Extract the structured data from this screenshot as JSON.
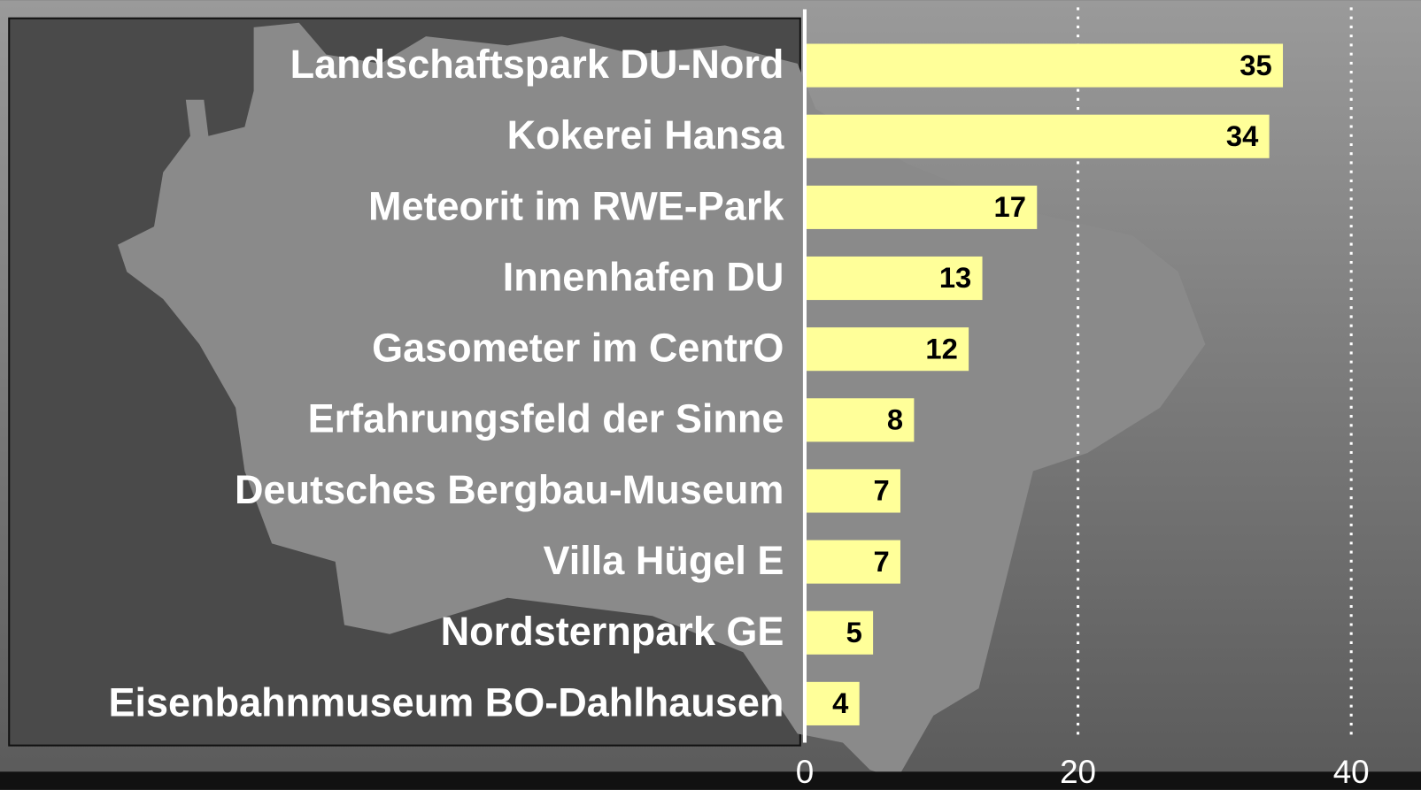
{
  "chart_data": {
    "type": "bar",
    "orientation": "horizontal",
    "categories": [
      "Landschaftspark DU-Nord",
      "Kokerei Hansa",
      "Meteorit im RWE-Park",
      "Innenhafen DU",
      "Gasometer im CentrO",
      "Erfahrungsfeld der Sinne",
      "Deutsches Bergbau-Museum",
      "Villa Hügel E",
      "Nordsternpark GE",
      "Eisenbahnmuseum BO-Dahlhausen"
    ],
    "values": [
      35,
      34,
      17,
      13,
      12,
      8,
      7,
      7,
      5,
      4
    ],
    "color": "#ffff99",
    "xlim": [
      0,
      40
    ],
    "xticks": [
      0,
      20,
      40
    ],
    "grid": true
  }
}
